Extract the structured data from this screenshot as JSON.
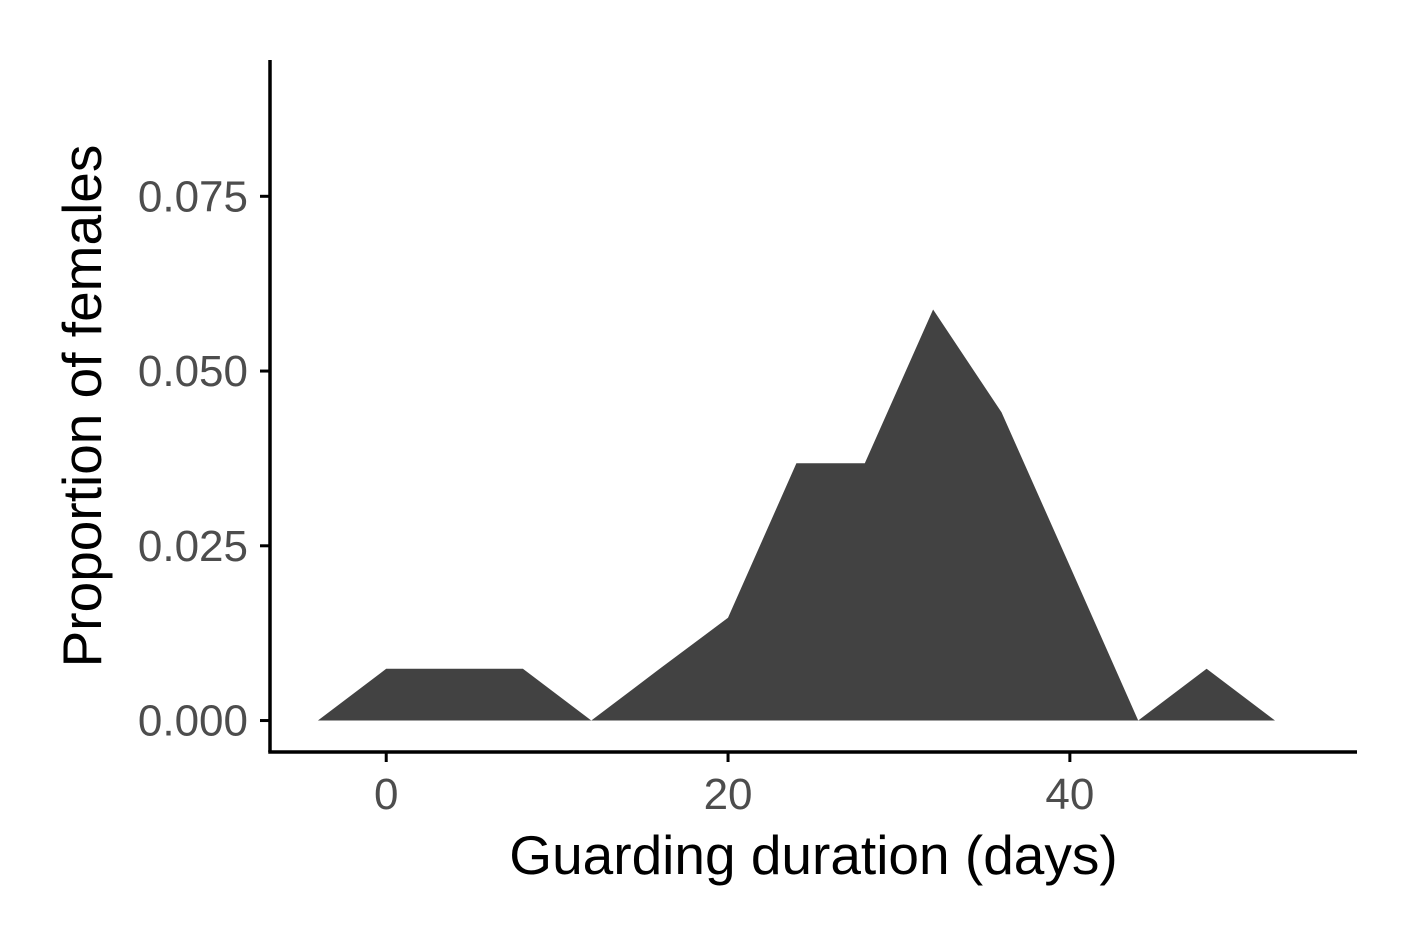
{
  "chart_data": {
    "type": "area",
    "title": "",
    "xlabel": "Guarding duration (days)",
    "ylabel": "Proportion of females",
    "xlim": [
      -6.8,
      56.8
    ],
    "ylim": [
      -0.0045,
      0.0945
    ],
    "x_ticks": [
      {
        "value": 0,
        "label": "0"
      },
      {
        "value": 20,
        "label": "20"
      },
      {
        "value": 40,
        "label": "40"
      }
    ],
    "y_ticks": [
      {
        "value": 0,
        "label": "0.000"
      },
      {
        "value": 0.025,
        "label": "0.025"
      },
      {
        "value": 0.05,
        "label": "0.050"
      },
      {
        "value": 0.075,
        "label": "0.075"
      }
    ],
    "series": [
      {
        "x": [
          -4,
          0,
          4,
          8,
          12,
          16,
          20,
          24,
          28,
          32,
          36,
          40,
          44,
          48,
          52
        ],
        "y": [
          0,
          0.0074,
          0.0074,
          0.0074,
          0,
          0.0074,
          0.0147,
          0.0368,
          0.0368,
          0.0588,
          0.0441,
          0.0221,
          0,
          0.0074,
          0
        ]
      }
    ],
    "fill_color": "#424242",
    "axis_color": "#000000",
    "tick_label_color": "#4d4d4d",
    "grid": false,
    "legend": "none"
  }
}
